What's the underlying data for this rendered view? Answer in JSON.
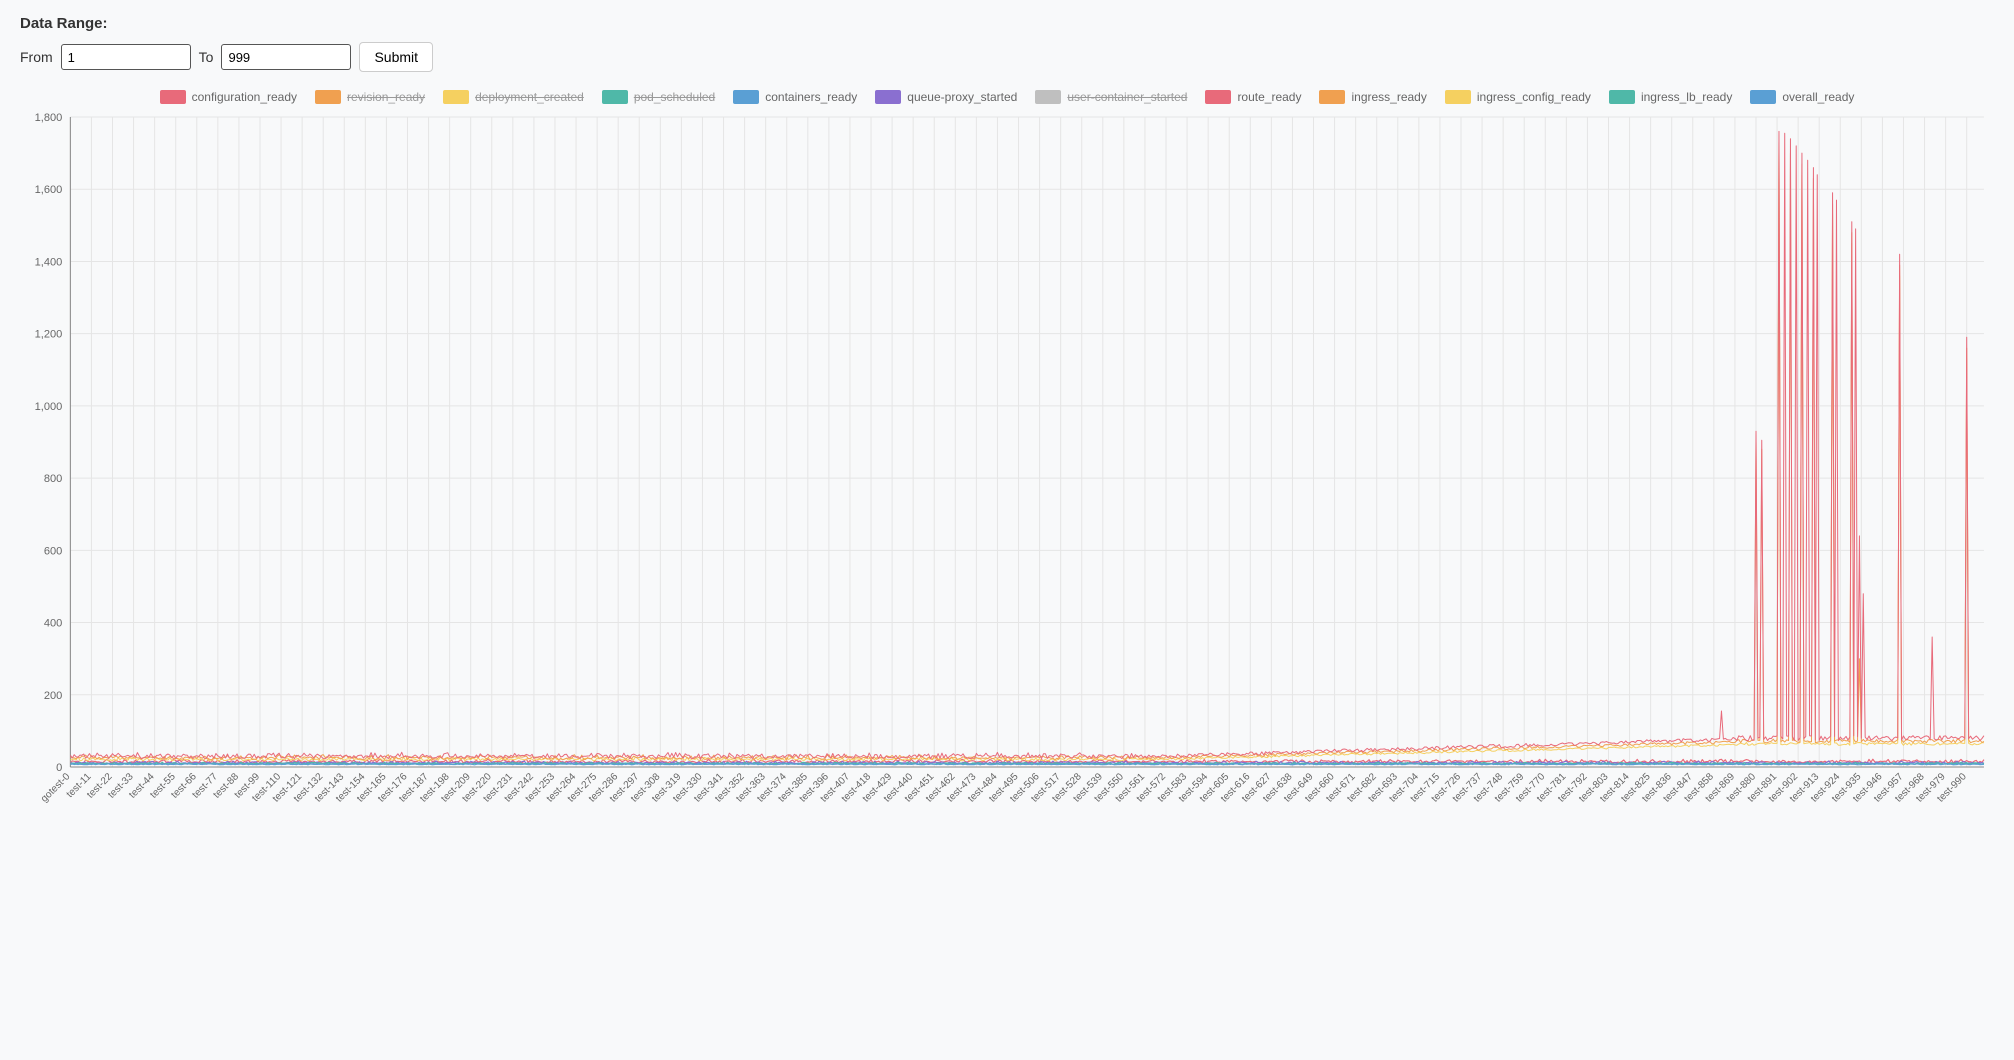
{
  "header": {
    "title": "Data Range:"
  },
  "range": {
    "from_label": "From",
    "from_value": "1",
    "to_label": "To",
    "to_value": "999",
    "submit_label": "Submit"
  },
  "chart": {
    "type": "line",
    "background_color": "#f8f9fa",
    "grid_color": "#e5e5e5",
    "axis_color": "#888888",
    "tick_fontsize": 11,
    "x_tick_fontsize": 10,
    "x_tick_rotation": -45,
    "ylim": [
      0,
      1800
    ],
    "ytick_step": 200,
    "y_ticks": [
      0,
      200,
      400,
      600,
      800,
      "1,000",
      "1,200",
      "1,400",
      "1,600",
      "1,800"
    ],
    "x_range": [
      0,
      999
    ],
    "x_tick_step": 11,
    "x_tick_prefix": "test-",
    "x_first_label": "gotest-0",
    "line_width": 1.2,
    "spike_line_width": 1.0,
    "series": [
      {
        "name": "configuration_ready",
        "color": "#e86a7a",
        "enabled": true,
        "baseline": 14,
        "noise": 6,
        "spikes": []
      },
      {
        "name": "revision_ready",
        "color": "#f0a050",
        "enabled": false,
        "baseline": 18,
        "noise": 4,
        "spikes": []
      },
      {
        "name": "deployment_created",
        "color": "#f5d060",
        "enabled": false,
        "baseline": 12,
        "noise": 3,
        "spikes": []
      },
      {
        "name": "pod_scheduled",
        "color": "#4fb8a8",
        "enabled": false,
        "baseline": 10,
        "noise": 3,
        "spikes": []
      },
      {
        "name": "containers_ready",
        "color": "#5a9fd4",
        "enabled": true,
        "baseline": 8,
        "noise": 2,
        "spikes": []
      },
      {
        "name": "queue-proxy_started",
        "color": "#8a6fd0",
        "enabled": true,
        "baseline": 11,
        "noise": 4,
        "spikes": []
      },
      {
        "name": "user-container_started",
        "color": "#bfbfbf",
        "enabled": false,
        "baseline": 9,
        "noise": 3,
        "spikes": []
      },
      {
        "name": "route_ready",
        "color": "#e86a7a",
        "enabled": true,
        "baseline": 28,
        "noise": 10,
        "ramp": {
          "start_x": 560,
          "end_x": 870,
          "end_val": 78
        },
        "plateau": {
          "start_x": 870,
          "val": 80,
          "noise": 14
        },
        "spikes": [
          {
            "x": 862,
            "y": 155
          },
          {
            "x": 880,
            "y": 930
          },
          {
            "x": 883,
            "y": 905
          },
          {
            "x": 892,
            "y": 1760
          },
          {
            "x": 895,
            "y": 1755
          },
          {
            "x": 898,
            "y": 1740
          },
          {
            "x": 901,
            "y": 1720
          },
          {
            "x": 904,
            "y": 1700
          },
          {
            "x": 907,
            "y": 1680
          },
          {
            "x": 910,
            "y": 1660
          },
          {
            "x": 912,
            "y": 1640
          },
          {
            "x": 920,
            "y": 1590
          },
          {
            "x": 922,
            "y": 1570
          },
          {
            "x": 930,
            "y": 1510
          },
          {
            "x": 932,
            "y": 1490
          },
          {
            "x": 934,
            "y": 640
          },
          {
            "x": 936,
            "y": 480
          },
          {
            "x": 955,
            "y": 1420
          },
          {
            "x": 972,
            "y": 360
          },
          {
            "x": 990,
            "y": 1190
          }
        ]
      },
      {
        "name": "ingress_ready",
        "color": "#f0a050",
        "enabled": true,
        "baseline": 24,
        "noise": 8,
        "ramp": {
          "start_x": 560,
          "end_x": 870,
          "end_val": 70
        },
        "plateau": {
          "start_x": 870,
          "val": 72,
          "noise": 10
        },
        "spikes": [
          {
            "x": 880,
            "y": 900
          },
          {
            "x": 883,
            "y": 880
          },
          {
            "x": 892,
            "y": 1730
          },
          {
            "x": 898,
            "y": 1700
          },
          {
            "x": 904,
            "y": 1670
          },
          {
            "x": 910,
            "y": 1630
          },
          {
            "x": 920,
            "y": 1560
          },
          {
            "x": 930,
            "y": 1480
          },
          {
            "x": 934,
            "y": 300
          },
          {
            "x": 955,
            "y": 1390
          },
          {
            "x": 990,
            "y": 1160
          }
        ]
      },
      {
        "name": "ingress_config_ready",
        "color": "#f5d060",
        "enabled": true,
        "baseline": 20,
        "noise": 6,
        "ramp": {
          "start_x": 560,
          "end_x": 870,
          "end_val": 62
        },
        "plateau": {
          "start_x": 870,
          "val": 64,
          "noise": 8
        },
        "spikes": [
          {
            "x": 892,
            "y": 1700
          },
          {
            "x": 904,
            "y": 1640
          },
          {
            "x": 920,
            "y": 1530
          },
          {
            "x": 930,
            "y": 1450
          },
          {
            "x": 955,
            "y": 1360
          },
          {
            "x": 990,
            "y": 1130
          }
        ]
      },
      {
        "name": "ingress_lb_ready",
        "color": "#4fb8a8",
        "enabled": true,
        "baseline": 9,
        "noise": 3,
        "spikes": []
      },
      {
        "name": "overall_ready",
        "color": "#5a9fd4",
        "enabled": true,
        "baseline": 7,
        "noise": 2,
        "spikes": []
      }
    ]
  }
}
